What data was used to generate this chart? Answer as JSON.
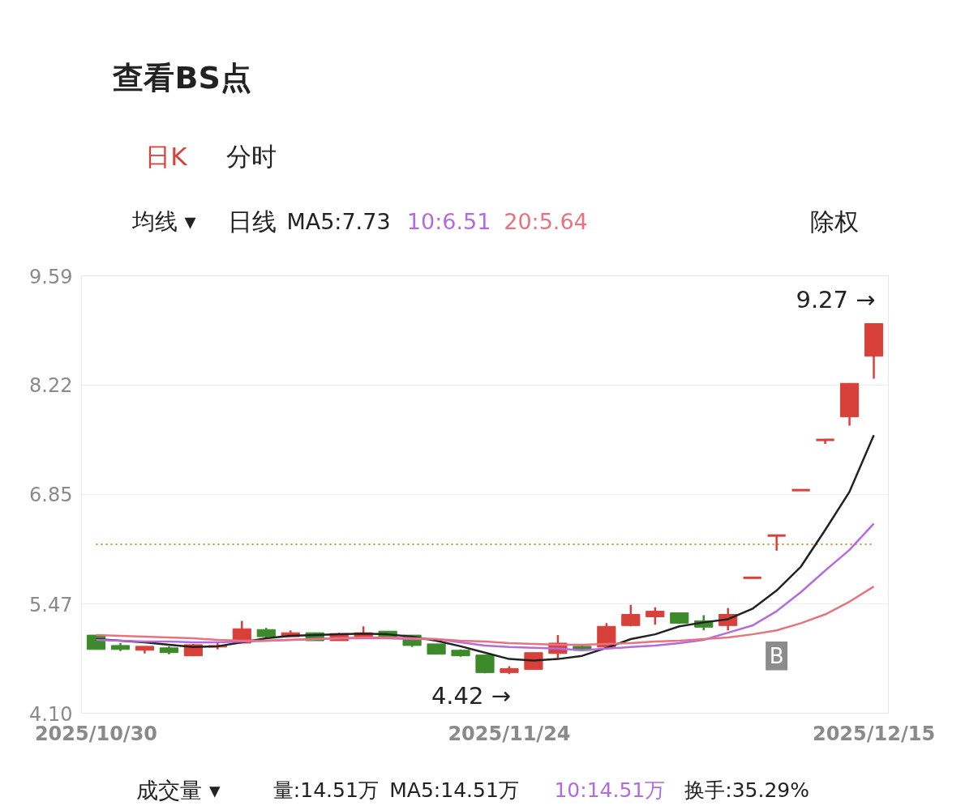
{
  "chart_data": {
    "type": "candlestick",
    "title": "查看BS点",
    "categories": [
      "2025/10/30",
      null,
      null,
      null,
      null,
      null,
      null,
      null,
      null,
      null,
      null,
      null,
      null,
      null,
      null,
      null,
      null,
      "2025/11/24",
      null,
      null,
      null,
      null,
      null,
      null,
      null,
      null,
      null,
      null,
      null,
      null,
      null,
      null,
      "2025/12/15"
    ],
    "ohlc": [
      [
        5.08,
        5.08,
        4.9,
        4.9
      ],
      [
        4.95,
        4.98,
        4.88,
        4.9
      ],
      [
        4.89,
        4.94,
        4.85,
        4.94
      ],
      [
        4.92,
        4.94,
        4.84,
        4.86
      ],
      [
        4.82,
        4.97,
        4.82,
        4.96
      ],
      [
        4.93,
        5.0,
        4.9,
        4.95
      ],
      [
        4.98,
        5.26,
        4.98,
        5.16
      ],
      [
        5.15,
        5.17,
        5.04,
        5.06
      ],
      [
        5.06,
        5.14,
        5.06,
        5.11
      ],
      [
        5.11,
        5.11,
        5.01,
        5.01
      ],
      [
        5.01,
        5.11,
        5.01,
        5.1
      ],
      [
        5.06,
        5.19,
        5.05,
        5.11
      ],
      [
        5.13,
        5.13,
        5.04,
        5.06
      ],
      [
        5.08,
        5.08,
        4.93,
        4.95
      ],
      [
        4.97,
        4.97,
        4.84,
        4.84
      ],
      [
        4.89,
        4.9,
        4.81,
        4.82
      ],
      [
        4.83,
        4.83,
        4.6,
        4.61
      ],
      [
        4.61,
        4.69,
        4.59,
        4.66
      ],
      [
        4.65,
        4.86,
        4.65,
        4.86
      ],
      [
        4.85,
        5.08,
        4.79,
        4.98
      ],
      [
        4.94,
        4.95,
        4.89,
        4.89
      ],
      [
        4.93,
        5.23,
        4.93,
        5.19
      ],
      [
        5.2,
        5.46,
        5.19,
        5.34
      ],
      [
        5.31,
        5.43,
        5.21,
        5.38
      ],
      [
        5.36,
        5.36,
        5.22,
        5.23
      ],
      [
        5.26,
        5.33,
        5.14,
        5.18
      ],
      [
        5.2,
        5.42,
        5.14,
        5.34
      ],
      [
        5.8,
        5.8,
        5.8,
        5.8
      ],
      [
        6.33,
        6.33,
        6.14,
        6.33
      ],
      [
        6.9,
        6.9,
        6.9,
        6.9
      ],
      [
        7.53,
        7.53,
        7.48,
        7.53
      ],
      [
        7.82,
        8.24,
        7.71,
        8.24
      ],
      [
        8.58,
        8.99,
        8.3,
        8.99
      ]
    ],
    "colors": [
      "#3d8a2b",
      "#3d8a2b",
      "#d8403a",
      "#3d8a2b",
      "#d8403a",
      "#d8403a",
      "#d8403a",
      "#3d8a2b",
      "#d8403a",
      "#3d8a2b",
      "#d8403a",
      "#d8403a",
      "#3d8a2b",
      "#3d8a2b",
      "#3d8a2b",
      "#3d8a2b",
      "#3d8a2b",
      "#d8403a",
      "#d8403a",
      "#d8403a",
      "#3d8a2b",
      "#d8403a",
      "#d8403a",
      "#d8403a",
      "#3d8a2b",
      "#3d8a2b",
      "#d8403a",
      "#d8403a",
      "#d8403a",
      "#d8403a",
      "#d8403a",
      "#d8403a",
      "#d8403a"
    ],
    "series": [
      {
        "type": "line",
        "name": "MA5:7.73",
        "color": "#222222",
        "values": [
          5.03,
          5.01,
          4.99,
          4.96,
          4.93,
          4.94,
          4.99,
          5.04,
          5.07,
          5.08,
          5.09,
          5.1,
          5.09,
          5.06,
          5.01,
          4.94,
          4.86,
          4.78,
          4.76,
          4.78,
          4.82,
          4.92,
          5.03,
          5.09,
          5.19,
          5.24,
          5.28,
          5.41,
          5.64,
          5.94,
          6.4,
          6.88,
          7.59
        ]
      },
      {
        "type": "line",
        "name": "10:6.51",
        "color": "#b56be0",
        "values": [
          5.02,
          5.01,
          5.0,
          5.0,
          4.99,
          4.99,
          5.0,
          5.01,
          5.02,
          5.03,
          5.04,
          5.04,
          5.04,
          5.03,
          5.03,
          4.99,
          4.95,
          4.93,
          4.92,
          4.91,
          4.89,
          4.91,
          4.93,
          4.95,
          4.98,
          5.02,
          5.11,
          5.2,
          5.38,
          5.62,
          5.89,
          6.15,
          6.48
        ]
      },
      {
        "type": "line",
        "name": "20:5.64",
        "color": "#e8737f",
        "values": [
          5.08,
          5.07,
          5.06,
          5.05,
          5.04,
          5.02,
          5.01,
          5.01,
          5.02,
          5.03,
          5.04,
          5.05,
          5.05,
          5.04,
          5.03,
          5.01,
          5.0,
          4.98,
          4.97,
          4.96,
          4.96,
          4.97,
          4.98,
          5.0,
          5.01,
          5.03,
          5.05,
          5.09,
          5.14,
          5.23,
          5.34,
          5.5,
          5.69
        ]
      }
    ],
    "ylim": [
      4.1,
      9.59
    ],
    "yticks": [
      {
        "value": 4.1,
        "label": "4.10"
      },
      5.47,
      6.85,
      8.22,
      9.59
    ],
    "grid": "y",
    "ref_lines": [
      {
        "axis": "y",
        "value": 6.22,
        "color": "#e08a2c",
        "line_style": "dotted"
      }
    ],
    "annotations": [
      "日K",
      "分时",
      "均线 ▾",
      "日线",
      "除权",
      "成交量 ▾",
      "量:14.51万",
      "MA5:14.51万",
      "10:14.51万",
      "换手:35.29%",
      "9.27 →",
      "4.42 →",
      "B"
    ]
  }
}
